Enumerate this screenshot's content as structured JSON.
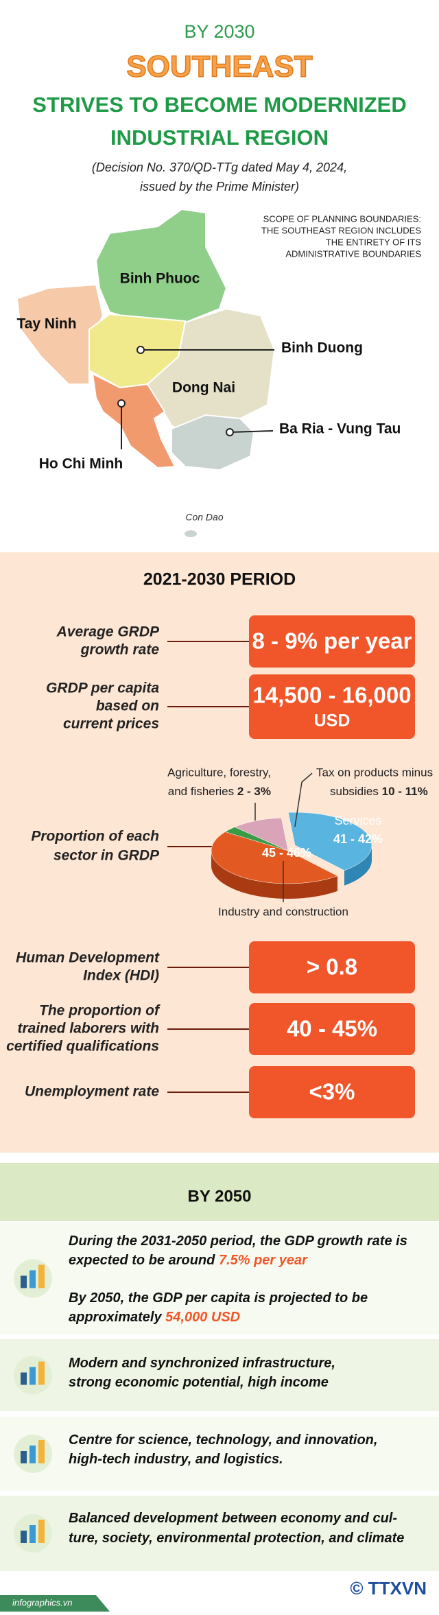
{
  "header": {
    "kicker": "BY 2030",
    "title": "SOUTHEAST",
    "subtitle_lines": [
      "STRIVES TO BECOME MODERNIZED",
      "INDUSTRIAL REGION"
    ],
    "decision_lines": [
      "(Decision No. 370/QD-TTg dated May 4, 2024,",
      "issued by the Prime Minister)"
    ]
  },
  "map": {
    "scope_lines": [
      "SCOPE OF PLANNING BOUNDARIES:",
      "THE SOUTHEAST REGION INCLUDES",
      "THE ENTIRETY OF ITS",
      "ADMINISTRATIVE BOUNDARIES"
    ],
    "provinces": [
      "Binh Phuoc",
      "Tay Ninh",
      "Binh Duong",
      "Dong Nai",
      "Ba Ria - Vung Tau",
      "Ho Chi Minh"
    ],
    "island": "Con Dao"
  },
  "period": {
    "title": "2021-2030 PERIOD",
    "indicators": [
      {
        "label_lines": [
          "Average GRDP",
          "growth rate"
        ],
        "value_lines": [
          "8 - 9% per year"
        ]
      },
      {
        "label_lines": [
          "GRDP per capita",
          "based on",
          "current prices"
        ],
        "value_lines": [
          "14,500 - 16,000",
          "USD"
        ]
      },
      {
        "label_lines": [
          "Human Development",
          "Index (HDI)"
        ],
        "value_lines": [
          "> 0.8"
        ]
      },
      {
        "label_lines": [
          "The proportion of",
          "trained laborers with",
          "certified qualifications"
        ],
        "value_lines": [
          "40 - 45%"
        ]
      },
      {
        "label_lines": [
          "Unemployment rate"
        ],
        "value_lines": [
          "<3%"
        ]
      }
    ],
    "sectors": {
      "label_lines": [
        "Proportion of each",
        "sector in GRDP"
      ],
      "agriculture": {
        "lines": [
          "Agriculture, forestry,",
          "and fisheries"
        ],
        "share": "2 - 3%"
      },
      "tax": {
        "lines": [
          "Tax on products minus",
          "subsidies"
        ],
        "share": "10 - 11%"
      },
      "services": {
        "name": "Services",
        "share": "41 - 42%"
      },
      "industry": {
        "name": "Industry and construction",
        "share": "45 - 46%"
      }
    }
  },
  "by2050": {
    "title": "BY 2050",
    "items": [
      {
        "lines": [
          {
            "text": "During the 2031-2050 period, the GDP growth rate is"
          },
          {
            "text": "expected to be around",
            "highlight": "7.5% per year"
          },
          {
            "text": "By 2050, the GDP per capita is projected to be"
          },
          {
            "text": "approximately",
            "highlight": "54,000 USD"
          }
        ]
      },
      {
        "lines": [
          {
            "text": "Modern and synchronized infrastructure,"
          },
          {
            "text": "strong economic potential, high income"
          }
        ]
      },
      {
        "lines": [
          {
            "text": "Centre for science, technology, and innovation,"
          },
          {
            "text": "high-tech industry, and logistics."
          }
        ]
      },
      {
        "lines": [
          {
            "text": "Balanced development between economy and cul-"
          },
          {
            "text": "ture, society, environmental protection, and climate"
          }
        ]
      }
    ]
  },
  "footer": {
    "site": "infographics.vn",
    "logo": "© TTXVN"
  }
}
